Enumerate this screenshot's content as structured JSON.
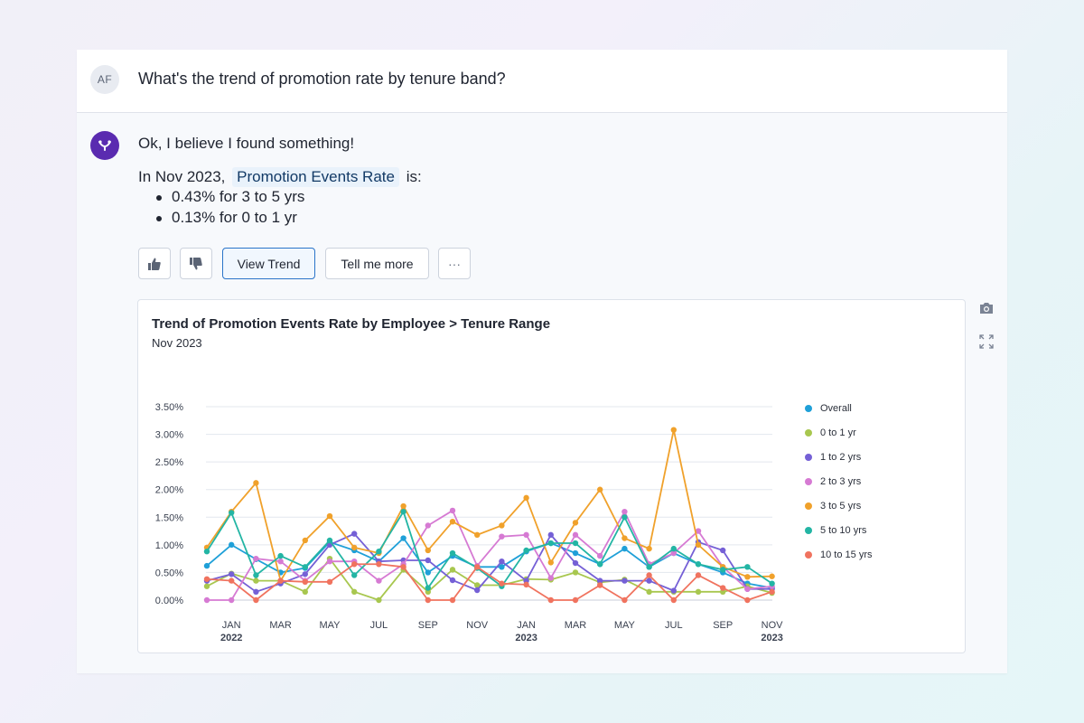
{
  "user": {
    "initials": "AF",
    "question": "What's the trend of promotion rate by tenure band?"
  },
  "bot": {
    "intro": "Ok, I believe I found something!",
    "line_prefix": "In Nov 2023,",
    "metric": "Promotion Events Rate",
    "line_suffix": "is:",
    "bullets": [
      "0.43% for 3 to 5 yrs",
      "0.13% for 0 to 1 yr"
    ]
  },
  "actions": {
    "thumbs_up_icon": "thumbs-up-icon",
    "thumbs_down_icon": "thumbs-down-icon",
    "view_trend": "View Trend",
    "tell_more": "Tell me more",
    "more": "···"
  },
  "card": {
    "title": "Trend of Promotion Events Rate by Employee > Tenure Range",
    "subtitle": "Nov 2023"
  },
  "side_icons": [
    "camera-icon",
    "expand-icon"
  ],
  "chart_data": {
    "type": "line",
    "title": "Trend of Promotion Events Rate by Employee > Tenure Range",
    "subtitle": "Nov 2023",
    "ylim": [
      0,
      3.5
    ],
    "yticks": [
      "0.00%",
      "0.50%",
      "1.00%",
      "1.50%",
      "2.00%",
      "2.50%",
      "3.00%",
      "3.50%"
    ],
    "x": [
      "Dec 2021",
      "Jan 2022",
      "Feb 2022",
      "Mar 2022",
      "Apr 2022",
      "May 2022",
      "Jun 2022",
      "Jul 2022",
      "Aug 2022",
      "Sep 2022",
      "Oct 2022",
      "Nov 2022",
      "Dec 2022",
      "Jan 2023",
      "Feb 2023",
      "Mar 2023",
      "Apr 2023",
      "May 2023",
      "Jun 2023",
      "Jul 2023",
      "Aug 2023",
      "Sep 2023",
      "Oct 2023",
      "Nov 2023"
    ],
    "xtick_labels": [
      {
        "index": 1,
        "label": "JAN",
        "year": "2022"
      },
      {
        "index": 3,
        "label": "MAR",
        "year": ""
      },
      {
        "index": 5,
        "label": "MAY",
        "year": ""
      },
      {
        "index": 7,
        "label": "JUL",
        "year": ""
      },
      {
        "index": 9,
        "label": "SEP",
        "year": ""
      },
      {
        "index": 11,
        "label": "NOV",
        "year": ""
      },
      {
        "index": 13,
        "label": "JAN",
        "year": "2023"
      },
      {
        "index": 15,
        "label": "MAR",
        "year": ""
      },
      {
        "index": 17,
        "label": "MAY",
        "year": ""
      },
      {
        "index": 19,
        "label": "JUL",
        "year": ""
      },
      {
        "index": 21,
        "label": "SEP",
        "year": ""
      },
      {
        "index": 23,
        "label": "NOV",
        "year": "2023"
      }
    ],
    "legend_position": "right",
    "grid": true,
    "series": [
      {
        "name": "Overall",
        "color": "#1fa0d8",
        "values": [
          0.62,
          1.0,
          0.74,
          0.5,
          0.58,
          1.05,
          0.9,
          0.7,
          1.12,
          0.5,
          0.8,
          0.6,
          0.6,
          0.88,
          1.03,
          0.85,
          0.65,
          0.93,
          0.6,
          0.85,
          0.65,
          0.5,
          0.3,
          0.22
        ]
      },
      {
        "name": "0 to 1 yr",
        "color": "#a8c74f",
        "values": [
          0.25,
          0.48,
          0.35,
          0.35,
          0.15,
          0.75,
          0.15,
          0.0,
          0.55,
          0.15,
          0.55,
          0.27,
          0.27,
          0.38,
          0.37,
          0.5,
          0.32,
          0.37,
          0.15,
          0.15,
          0.15,
          0.15,
          0.25,
          0.13
        ]
      },
      {
        "name": "1 to 2 yrs",
        "color": "#7560d6",
        "values": [
          0.35,
          0.47,
          0.15,
          0.3,
          0.47,
          1.0,
          1.2,
          0.7,
          0.72,
          0.72,
          0.36,
          0.18,
          0.7,
          0.35,
          1.18,
          0.67,
          0.35,
          0.35,
          0.35,
          0.17,
          1.05,
          0.9,
          0.2,
          0.2
        ]
      },
      {
        "name": "2 to 3 yrs",
        "color": "#d67ad3",
        "values": [
          0.0,
          0.0,
          0.75,
          0.7,
          0.35,
          0.7,
          0.7,
          0.35,
          0.65,
          1.35,
          1.62,
          0.62,
          1.15,
          1.18,
          0.4,
          1.18,
          0.8,
          1.6,
          0.65,
          0.85,
          1.25,
          0.6,
          0.2,
          0.25
        ]
      },
      {
        "name": "3 to 5 yrs",
        "color": "#f0a12b",
        "values": [
          0.95,
          1.6,
          2.12,
          0.35,
          1.08,
          1.52,
          0.95,
          0.85,
          1.7,
          0.9,
          1.42,
          1.18,
          1.35,
          1.85,
          0.68,
          1.4,
          2.0,
          1.12,
          0.93,
          3.08,
          1.0,
          0.6,
          0.42,
          0.43
        ]
      },
      {
        "name": "5 to 10 yrs",
        "color": "#23b5a4",
        "values": [
          0.88,
          1.58,
          0.45,
          0.8,
          0.6,
          1.08,
          0.45,
          0.88,
          1.6,
          0.22,
          0.85,
          0.58,
          0.25,
          0.9,
          1.03,
          1.03,
          0.65,
          1.5,
          0.6,
          0.93,
          0.65,
          0.55,
          0.6,
          0.3
        ]
      },
      {
        "name": "10 to 15 yrs",
        "color": "#f0735f",
        "values": [
          0.38,
          0.35,
          0.0,
          0.35,
          0.33,
          0.33,
          0.65,
          0.65,
          0.6,
          0.0,
          0.0,
          0.6,
          0.3,
          0.28,
          0.0,
          0.0,
          0.27,
          0.0,
          0.45,
          0.0,
          0.45,
          0.22,
          0.0,
          0.15
        ]
      }
    ]
  }
}
